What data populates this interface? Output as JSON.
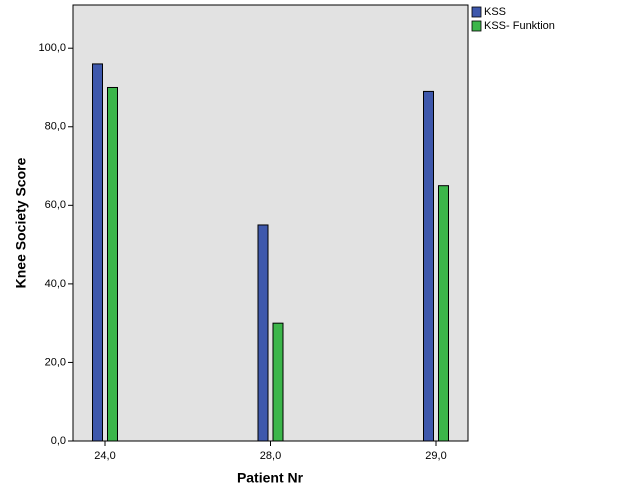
{
  "chart_data": {
    "type": "bar",
    "x_label": "Patient Nr",
    "y_label": "Knee Society Score",
    "categories": [
      "24,0",
      "28,0",
      "29,0"
    ],
    "series": [
      {
        "name": "KSS",
        "color": "#3e58ac",
        "values": [
          96,
          55,
          89
        ]
      },
      {
        "name": "KSS- Funktion",
        "color": "#3cb64a",
        "values": [
          90,
          30,
          65
        ]
      }
    ],
    "ylim": [
      0,
      111
    ],
    "yticks": [
      {
        "value": 0,
        "label": "0,0"
      },
      {
        "value": 20,
        "label": "20,0"
      },
      {
        "value": 40,
        "label": "40,0"
      },
      {
        "value": 60,
        "label": "60,0"
      },
      {
        "value": 80,
        "label": "80,0"
      },
      {
        "value": 100,
        "label": "100,0"
      }
    ],
    "legend": "top-right"
  }
}
